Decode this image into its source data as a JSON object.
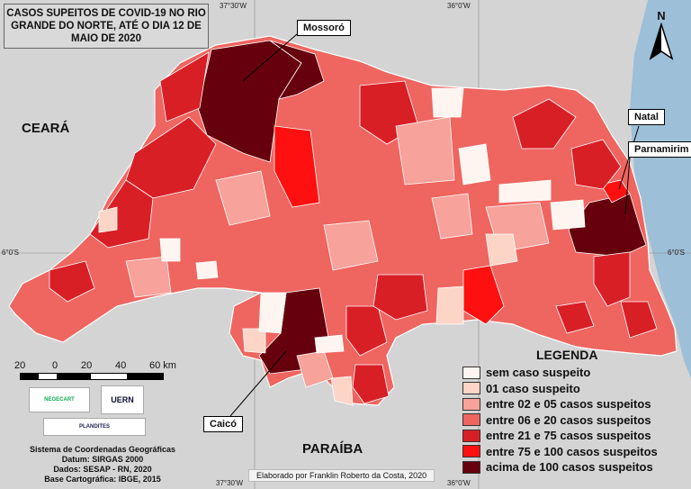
{
  "title": "CASOS SUPEITOS DE COVID-19 NO RIO GRANDE DO NORTE, ATÉ O DIA 12 DE MAIO DE 2020",
  "states": {
    "ceara": "CEARÁ",
    "paraiba": "PARAÍBA"
  },
  "cities": {
    "mossoro": "Mossoró",
    "natal": "Natal",
    "parnamirim": "Parnamirim",
    "caico": "Caicó"
  },
  "coords": {
    "lon_left": "37°30'W",
    "lon_right": "36°0'W",
    "lat_left": "6°0'S",
    "lat_right": "6°0'S",
    "lon_left_bottom": "37°30'W",
    "lon_right_bottom": "36°0'W"
  },
  "north": "N",
  "legend": {
    "title": "LEGENDA",
    "items": [
      {
        "label": "sem caso suspeito",
        "color": "#fff5f0"
      },
      {
        "label": "01 caso suspeito",
        "color": "#fcd5c6"
      },
      {
        "label": "entre 02 e 05 casos suspeitos",
        "color": "#f7a29a"
      },
      {
        "label": "entre 06 e 20 casos suspeitos",
        "color": "#ef6560"
      },
      {
        "label": "entre 21 e 75 casos suspeitos",
        "color": "#d91f26"
      },
      {
        "label": "entre 75 e 100 casos suspeitos",
        "color": "#ff1010"
      },
      {
        "label": "acima de 100 casos suspeitos",
        "color": "#67000d"
      }
    ]
  },
  "scale": {
    "labels": [
      "20",
      "0",
      "20",
      "40",
      "60 km"
    ]
  },
  "logos": {
    "negecart": "NEGECART",
    "uern": "UERN",
    "plandites": "PLANDITES"
  },
  "footer": {
    "line1": "Sistema de Coordenadas Geográficas",
    "line2": "Datum: SIRGAS 2000",
    "line3": "Dados: SESAP - RN, 2020",
    "line4": "Base Cartográfica: IBGE, 2015"
  },
  "credit": "Elaborado por Franklin Roberto da Costa, 2020",
  "colors": {
    "land": "#d4d4d4",
    "ocean": "#9dbfd8",
    "state_fill": "#ef6560",
    "border": "#ffffff"
  }
}
